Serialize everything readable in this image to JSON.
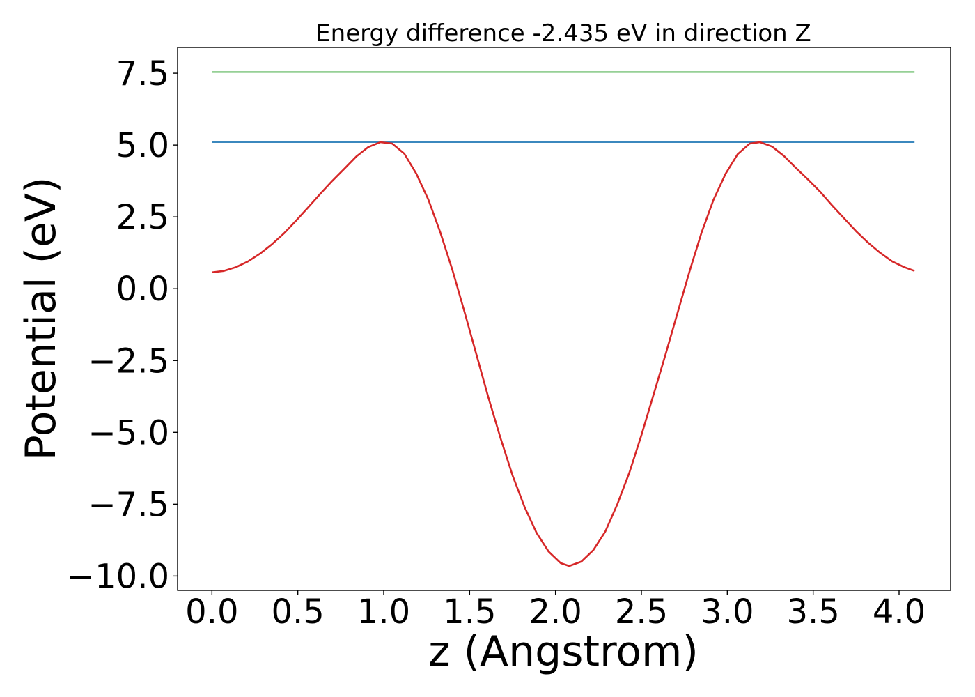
{
  "chart_data": {
    "type": "line",
    "title": "Energy difference -2.435 eV in direction Z",
    "xlabel": "z (Angstrom)",
    "ylabel": "Potential (eV)",
    "xlim": [
      -0.2,
      4.3
    ],
    "ylim": [
      -10.5,
      8.4
    ],
    "xticks": [
      0.0,
      0.5,
      1.0,
      1.5,
      2.0,
      2.5,
      3.0,
      3.5,
      4.0
    ],
    "xtick_labels": [
      "0.0",
      "0.5",
      "1.0",
      "1.5",
      "2.0",
      "2.5",
      "3.0",
      "3.5",
      "4.0"
    ],
    "yticks": [
      7.5,
      5.0,
      2.5,
      0.0,
      -2.5,
      -5.0,
      -7.5,
      -10.0
    ],
    "ytick_labels": [
      "7.5",
      "5.0",
      "2.5",
      "0.0",
      "−2.5",
      "−5.0",
      "−7.5",
      "−10.0"
    ],
    "grid": false,
    "series": [
      {
        "color": "#2ca02c",
        "x": [
          0.0,
          4.09
        ],
        "y": [
          7.54,
          7.54
        ]
      },
      {
        "color": "#1f77b4",
        "x": [
          0.0,
          4.09
        ],
        "y": [
          5.1,
          5.1
        ]
      },
      {
        "color": "#d62728",
        "x": [
          0.0,
          0.07,
          0.14,
          0.21,
          0.28,
          0.35,
          0.42,
          0.49,
          0.56,
          0.63,
          0.7,
          0.77,
          0.84,
          0.91,
          0.98,
          1.05,
          1.12,
          1.19,
          1.26,
          1.33,
          1.4,
          1.47,
          1.54,
          1.61,
          1.68,
          1.75,
          1.82,
          1.89,
          1.96,
          2.03,
          2.08,
          2.15,
          2.22,
          2.29,
          2.36,
          2.43,
          2.5,
          2.57,
          2.64,
          2.71,
          2.78,
          2.85,
          2.92,
          2.99,
          3.06,
          3.13,
          3.19,
          3.26,
          3.33,
          3.4,
          3.47,
          3.54,
          3.61,
          3.68,
          3.75,
          3.82,
          3.89,
          3.96,
          4.03,
          4.09
        ],
        "y": [
          0.57,
          0.62,
          0.75,
          0.95,
          1.22,
          1.55,
          1.93,
          2.37,
          2.83,
          3.3,
          3.75,
          4.17,
          4.6,
          4.93,
          5.1,
          5.05,
          4.7,
          4.0,
          3.1,
          1.95,
          0.65,
          -0.8,
          -2.3,
          -3.8,
          -5.2,
          -6.5,
          -7.6,
          -8.5,
          -9.15,
          -9.55,
          -9.65,
          -9.5,
          -9.1,
          -8.45,
          -7.5,
          -6.4,
          -5.1,
          -3.7,
          -2.3,
          -0.85,
          0.6,
          1.95,
          3.1,
          4.0,
          4.68,
          5.05,
          5.1,
          4.95,
          4.62,
          4.2,
          3.8,
          3.38,
          2.9,
          2.45,
          2.0,
          1.6,
          1.25,
          0.95,
          0.75,
          0.62
        ]
      }
    ]
  }
}
